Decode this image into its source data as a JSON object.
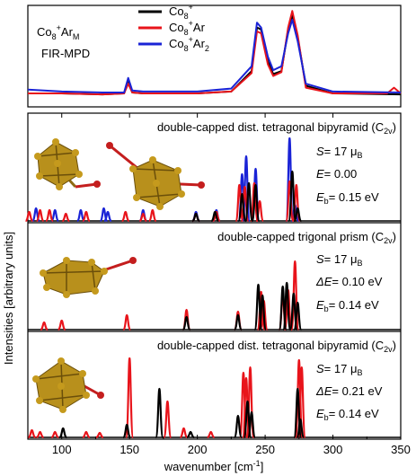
{
  "figure": {
    "ylabel": "Intensities [arbitrary units]",
    "xlabel": "wavenumber [cm",
    "xlabel_sup": "-1",
    "xlabel_end": "]",
    "xticks": [
      "100",
      "150",
      "200",
      "250",
      "300",
      "350"
    ],
    "colors": {
      "black": "#000000",
      "red": "#e8141b",
      "blue": "#1a23d6",
      "gold": "#b8901c",
      "bond_red": "#c41e1e"
    }
  },
  "top": {
    "species_base": "Co",
    "species_sub": "8",
    "species_sup": "+",
    "species_tail": "Ar",
    "species_tail_sub": "M",
    "method": "FIR-MPD",
    "legend": [
      {
        "label_base": "Co",
        "label_sub": "8",
        "label_sup": "+",
        "label_tail": "",
        "label_tail_sub": "",
        "color": "#000000"
      },
      {
        "label_base": "Co",
        "label_sub": "8",
        "label_sup": "+",
        "label_tail": "Ar",
        "label_tail_sub": "",
        "color": "#e8141b"
      },
      {
        "label_base": "Co",
        "label_sub": "8",
        "label_sup": "+",
        "label_tail": "Ar",
        "label_tail_sub": "2",
        "color": "#1a23d6"
      }
    ]
  },
  "panels": [
    {
      "title": "double-capped dist. tetragonal bipyramid (C",
      "title_sub": "2v",
      "title_end": ")",
      "s_label": "S",
      "s_value": "= 17 μ",
      "s_sub": "B",
      "e_label": "E",
      "e_value": "= 0.00",
      "eb_label": "E",
      "eb_sub": "b",
      "eb_value": "= 0.15 eV"
    },
    {
      "title": "double-capped trigonal prism (C",
      "title_sub": "2v",
      "title_end": ")",
      "s_label": "S",
      "s_value": "= 17 μ",
      "s_sub": "B",
      "e_label": "ΔE",
      "e_value": "= 0.10 eV",
      "eb_label": "E",
      "eb_sub": "b",
      "eb_value": "= 0.14 eV"
    },
    {
      "title": "double-capped dist. tetragonal bipyramid (C",
      "title_sub": "2v",
      "title_end": ")",
      "s_label": "S",
      "s_value": "= 17 μ",
      "s_sub": "B",
      "e_label": "ΔE",
      "e_value": "= 0.21 eV",
      "eb_label": "E",
      "eb_sub": "b",
      "eb_value": "= 0.14 eV"
    }
  ],
  "chart_data": {
    "type": "line",
    "xlabel": "wavenumber [cm-1]",
    "ylabel": "Intensities [arbitrary units]",
    "xlim": [
      75,
      350
    ],
    "grid": false,
    "experiment": {
      "series": [
        {
          "name": "Co8+",
          "color": "#000000",
          "x": [
            75,
            100,
            130,
            146,
            149,
            152,
            160,
            200,
            225,
            240,
            244,
            247,
            252,
            256,
            262,
            267,
            270,
            274,
            280,
            300,
            350
          ],
          "y": [
            0.12,
            0.12,
            0.11,
            0.12,
            0.24,
            0.13,
            0.12,
            0.12,
            0.14,
            0.35,
            0.8,
            0.78,
            0.45,
            0.32,
            0.35,
            0.78,
            0.93,
            0.7,
            0.2,
            0.12,
            0.11
          ]
        },
        {
          "name": "Co8+Ar",
          "color": "#e8141b",
          "x": [
            75,
            100,
            130,
            146,
            149,
            152,
            160,
            200,
            225,
            240,
            244,
            247,
            252,
            256,
            262,
            267,
            270,
            274,
            280,
            300,
            340,
            345,
            350
          ],
          "y": [
            0.12,
            0.12,
            0.11,
            0.12,
            0.22,
            0.13,
            0.12,
            0.12,
            0.14,
            0.33,
            0.76,
            0.74,
            0.42,
            0.3,
            0.34,
            0.8,
            0.97,
            0.72,
            0.18,
            0.12,
            0.12,
            0.18,
            0.12
          ]
        },
        {
          "name": "Co8+Ar2",
          "color": "#1a23d6",
          "x": [
            75,
            100,
            130,
            146,
            149,
            152,
            160,
            200,
            225,
            240,
            244,
            247,
            252,
            256,
            262,
            267,
            270,
            274,
            280,
            300,
            350
          ],
          "y": [
            0.16,
            0.14,
            0.13,
            0.13,
            0.28,
            0.15,
            0.14,
            0.14,
            0.17,
            0.4,
            0.85,
            0.8,
            0.5,
            0.36,
            0.4,
            0.74,
            0.88,
            0.66,
            0.22,
            0.14,
            0.13
          ]
        }
      ]
    },
    "calculated": [
      {
        "name": "double-capped dist. tetragonal bipyramid (C2v), S = 17 μB, E = 0.00, Eb = 0.15 eV",
        "sticks": [
          {
            "color": "#1a23d6",
            "x": [
              81,
              95,
              114,
              131,
              134,
              160,
              199,
              214,
              233,
              236,
              243,
              268,
              272
            ],
            "h": [
              0.14,
              0.12,
              0.12,
              0.14,
              0.1,
              0.12,
              0.1,
              0.12,
              0.52,
              0.72,
              0.58,
              0.92,
              0.18
            ]
          },
          {
            "color": "#e8141b",
            "x": [
              76,
              84,
              91,
              103,
              118,
              147,
              160,
              167,
              199,
              214,
              231,
              235,
              242,
              246,
              268,
              273
            ],
            "h": [
              0.1,
              0.12,
              0.12,
              0.08,
              0.1,
              0.1,
              0.08,
              0.12,
              0.08,
              0.1,
              0.4,
              0.38,
              0.42,
              0.22,
              0.44,
              0.4
            ]
          },
          {
            "color": "#000000",
            "x": [
              199,
              213,
              233,
              238,
              243,
              270,
              274
            ],
            "h": [
              0.08,
              0.1,
              0.3,
              0.42,
              0.4,
              0.55,
              0.14
            ]
          }
        ]
      },
      {
        "name": "double-capped trigonal prism (C2v), S = 17 μB, ΔE = 0.10 eV, Eb = 0.14 eV",
        "sticks": [
          {
            "color": "#e8141b",
            "x": [
              87,
              100,
              148,
              192,
              230,
              247,
              249,
              263,
              267,
              272
            ],
            "h": [
              0.08,
              0.1,
              0.16,
              0.22,
              0.2,
              0.42,
              0.32,
              0.4,
              0.44,
              0.76
            ]
          },
          {
            "color": "#000000",
            "x": [
              192,
              230,
              245,
              248,
              263,
              266,
              271,
              274
            ],
            "h": [
              0.14,
              0.16,
              0.5,
              0.38,
              0.48,
              0.52,
              0.4,
              0.3
            ]
          }
        ]
      },
      {
        "name": "double-capped dist. tetragonal bipyramid (C2v), S = 17 μB, ΔE = 0.21 eV, Eb = 0.14 eV",
        "sticks": [
          {
            "color": "#e8141b",
            "x": [
              78,
              84,
              95,
              118,
              128,
              150,
              178,
              190,
              210,
              234,
              236,
              239,
              275,
              277
            ],
            "h": [
              0.08,
              0.06,
              0.06,
              0.06,
              0.05,
              0.88,
              0.4,
              0.1,
              0.06,
              0.72,
              0.66,
              0.78,
              0.86,
              0.78
            ]
          },
          {
            "color": "#000000",
            "x": [
              101,
              148,
              172,
              195,
              230,
              237,
              240,
              274,
              276
            ],
            "h": [
              0.1,
              0.14,
              0.54,
              0.06,
              0.24,
              0.4,
              0.28,
              0.54,
              0.2
            ]
          }
        ]
      }
    ]
  }
}
